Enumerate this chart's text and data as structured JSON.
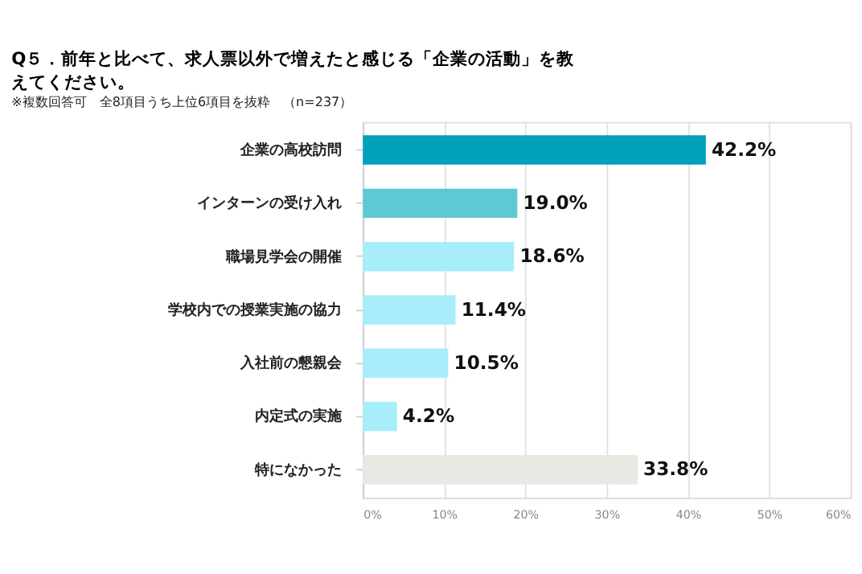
{
  "chart_data": {
    "type": "bar",
    "orientation": "horizontal",
    "title": "Q５．前年と比べて、求人票以外で増えたと感じる「企業の活動」を教えてください。",
    "subtitle": "※複数回答可　全8項目うち上位6項目を抜粋　（n=237）",
    "categories": [
      "企業の高校訪問",
      "インターンの受け入れ",
      "職場見学会の開催",
      "学校内での授業実施の協力",
      "入社前の懇親会",
      "内定式の実施",
      "特になかった"
    ],
    "values": [
      42.2,
      19.0,
      18.6,
      11.4,
      10.5,
      4.2,
      33.8
    ],
    "colors": [
      "#00a0bc",
      "#5ec8d4",
      "#a8eefa",
      "#a8eefa",
      "#a8eefa",
      "#a8eefa",
      "#eae8e3"
    ],
    "value_labels": [
      "42.2%",
      "19.0%",
      "18.6%",
      "11.4%",
      "10.5%",
      "4.2%",
      "33.8%"
    ],
    "xlim": [
      0,
      60
    ],
    "xticks": [
      {
        "value": 0,
        "label": "0%"
      },
      {
        "value": 10,
        "label": "10%"
      },
      {
        "value": 20,
        "label": "20%"
      },
      {
        "value": 30,
        "label": "30%"
      },
      {
        "value": 40,
        "label": "40%"
      },
      {
        "value": 50,
        "label": "50%"
      },
      {
        "value": 60,
        "label": "60%"
      }
    ],
    "grid": "x"
  }
}
